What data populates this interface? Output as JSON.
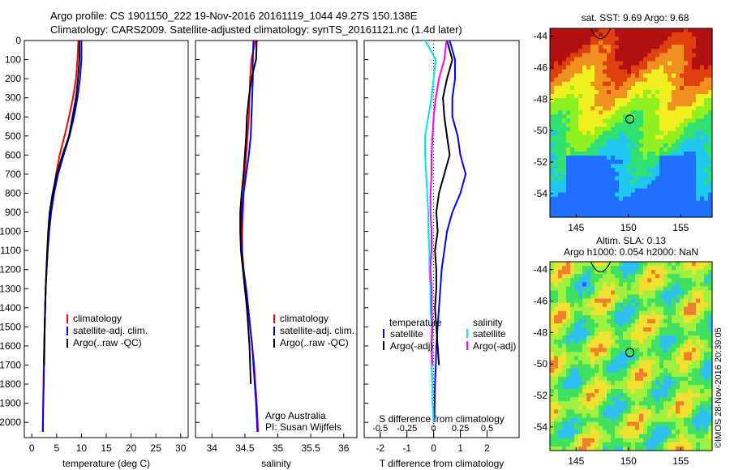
{
  "header": {
    "line1": "Argo profile: CS 1901150_222 19-Nov-2016 20161119_1044 49.27S 150.138E",
    "line2": "Climatology: CARS2009. Satellite-adjusted climatology: synTS_20161121.nc (1.4d later)"
  },
  "colors": {
    "climatology": "#ff0000",
    "satellite": "#0000ff",
    "argo": "#000000",
    "sat_salinity": "#00ffff",
    "argo_salinity_diff": "#ff00ff"
  },
  "chart_data": [
    {
      "type": "line",
      "xlabel": "temperature (deg C)",
      "ylabel": "",
      "xlim": [
        -1.5,
        31.5
      ],
      "ylim": [
        2080,
        0
      ],
      "xticks": [
        "0",
        "5",
        "10",
        "15",
        "20",
        "25",
        "30"
      ],
      "yticks": [
        "0",
        "100",
        "200",
        "300",
        "400",
        "500",
        "600",
        "700",
        "800",
        "900",
        "1000",
        "1100",
        "1200",
        "1300",
        "1400",
        "1500",
        "1600",
        "1700",
        "1800",
        "1900",
        "2000"
      ],
      "legend": [
        "climatology",
        "satellite-adj. clim.",
        "Argo(..raw -QC)"
      ],
      "legend_position": "lower-right",
      "series": [
        {
          "name": "climatology",
          "color": "red",
          "x": [
            9.4,
            9.2,
            8.9,
            8.3,
            7.5,
            6.6,
            5.6,
            4.9,
            4.3,
            3.8,
            3.5,
            3.2,
            3.0,
            2.8,
            2.7,
            2.6,
            2.5,
            2.4,
            2.35,
            2.3,
            2.2
          ],
          "y": [
            0,
            100,
            200,
            300,
            400,
            500,
            600,
            700,
            800,
            900,
            1000,
            1100,
            1200,
            1300,
            1400,
            1500,
            1600,
            1700,
            1800,
            1900,
            2050
          ]
        },
        {
          "name": "satellite-adj. clim.",
          "color": "blue",
          "x": [
            10.0,
            10.0,
            9.7,
            9.2,
            8.5,
            7.6,
            6.4,
            5.3,
            4.5,
            3.9,
            3.5,
            3.2,
            3.0,
            2.8,
            2.7,
            2.6,
            2.5,
            2.45,
            2.4,
            2.3,
            2.25
          ],
          "y": [
            0,
            100,
            200,
            300,
            400,
            500,
            600,
            700,
            800,
            900,
            1000,
            1100,
            1200,
            1300,
            1400,
            1500,
            1600,
            1700,
            1800,
            1900,
            2050
          ]
        },
        {
          "name": "Argo(..raw -QC)",
          "color": "black",
          "x": [
            9.6,
            9.6,
            9.3,
            8.9,
            8.2,
            7.5,
            6.2,
            5.0,
            4.2,
            3.6,
            3.3,
            3.1,
            2.95,
            2.8,
            2.7,
            2.6,
            2.55,
            2.5
          ],
          "y": [
            0,
            100,
            200,
            300,
            400,
            500,
            600,
            700,
            800,
            900,
            1000,
            1100,
            1200,
            1300,
            1400,
            1500,
            1600,
            1700
          ]
        }
      ]
    },
    {
      "type": "line",
      "xlabel": "salinity",
      "xlim": [
        33.75,
        36.2
      ],
      "ylim": [
        2080,
        0
      ],
      "xticks": [
        "34",
        "34.5",
        "35",
        "35.5",
        "36"
      ],
      "legend": [
        "climatology",
        "satellite-adj. clim.",
        "Argo(..raw -QC)"
      ],
      "legend_position": "lower-right",
      "annotation": [
        "Argo Australia",
        "PI: Susan Wijffels"
      ],
      "series": [
        {
          "name": "climatology",
          "color": "red",
          "x": [
            34.66,
            34.6,
            34.58,
            34.57,
            34.56,
            34.54,
            34.52,
            34.5,
            34.48,
            34.47,
            34.46,
            34.46,
            34.48,
            34.52,
            34.55,
            34.58,
            34.61,
            34.64,
            34.66,
            34.68,
            34.7
          ],
          "y": [
            0,
            100,
            200,
            300,
            400,
            500,
            600,
            700,
            800,
            900,
            1000,
            1100,
            1200,
            1300,
            1400,
            1500,
            1600,
            1700,
            1800,
            1900,
            2050
          ]
        },
        {
          "name": "satellite-adj. clim.",
          "color": "blue",
          "x": [
            34.63,
            34.62,
            34.62,
            34.61,
            34.6,
            34.59,
            34.56,
            34.52,
            34.48,
            34.45,
            34.44,
            34.45,
            34.48,
            34.52,
            34.55,
            34.58,
            34.61,
            34.63,
            34.65,
            34.67,
            34.69
          ],
          "y": [
            0,
            100,
            200,
            300,
            400,
            500,
            600,
            700,
            800,
            900,
            1000,
            1100,
            1200,
            1300,
            1400,
            1500,
            1600,
            1700,
            1800,
            1900,
            2050
          ]
        },
        {
          "name": "Argo(..raw -QC)",
          "color": "black",
          "x": [
            34.68,
            34.67,
            34.6,
            34.56,
            34.53,
            34.52,
            34.5,
            34.48,
            34.45,
            34.43,
            34.43,
            34.44,
            34.47,
            34.5,
            34.53,
            34.55,
            34.57,
            34.58,
            34.59
          ],
          "y": [
            0,
            100,
            200,
            300,
            400,
            500,
            600,
            700,
            800,
            900,
            1000,
            1100,
            1200,
            1300,
            1400,
            1500,
            1600,
            1700,
            1800
          ]
        }
      ]
    },
    {
      "type": "line",
      "xlabel": "T difference from climatology",
      "xlabel_top": "S difference from climatology",
      "xlim": [
        -2.6,
        3.2
      ],
      "ylim": [
        2080,
        0
      ],
      "xticks": [
        "-2",
        "-1",
        "0",
        "1",
        "2"
      ],
      "xticks_top": [
        "-0.5",
        "-0.25",
        "0",
        "0.25",
        "0.5"
      ],
      "legend": [
        "temperature",
        "satellite",
        "Argo(-adj)",
        "salinity",
        "satellite",
        "Argo(-adj)"
      ],
      "legend_position": "lower-center",
      "series": [
        {
          "name": "satellite",
          "color": "blue",
          "x": [
            0.6,
            0.8,
            0.8,
            0.7,
            0.7,
            0.9,
            1.0,
            1.2,
            1.0,
            0.7,
            0.5,
            0.4,
            0.3,
            0.25,
            0.2,
            0.15,
            0.1,
            0.08,
            0.05,
            0.04,
            0.03
          ],
          "y": [
            0,
            100,
            200,
            300,
            400,
            500,
            600,
            700,
            800,
            900,
            1000,
            1100,
            1200,
            1300,
            1400,
            1500,
            1600,
            1700,
            1800,
            1900,
            2000
          ]
        },
        {
          "name": "Argo(-adj)",
          "color": "black",
          "x": [
            0.5,
            0.7,
            0.5,
            0.35,
            0.4,
            0.5,
            0.6,
            0.4,
            0.2,
            0.1,
            0.15,
            0.05,
            0.1,
            0.1,
            0.05,
            0.1,
            0.15,
            0.2
          ],
          "y": [
            0,
            100,
            200,
            300,
            400,
            500,
            600,
            700,
            800,
            900,
            1000,
            1100,
            1200,
            1300,
            1400,
            1500,
            1600,
            1700
          ]
        },
        {
          "name": "satellite",
          "color": "cyan",
          "x": [
            -0.08,
            0.02,
            0.0,
            -0.02,
            -0.05,
            -0.08,
            -0.08,
            -0.07,
            -0.06,
            -0.05,
            -0.05,
            -0.04,
            -0.04,
            -0.03,
            -0.03,
            -0.02,
            -0.02,
            -0.02,
            -0.01,
            -0.01,
            0.0
          ],
          "y": [
            0,
            100,
            200,
            300,
            400,
            500,
            600,
            700,
            800,
            900,
            1000,
            1100,
            1200,
            1300,
            1400,
            1500,
            1600,
            1700,
            1800,
            1900,
            2000
          ]
        },
        {
          "name": "Argo(-adj)",
          "color": "magenta",
          "x": [
            0.12,
            0.1,
            0.05,
            0.02,
            0.0,
            -0.01,
            -0.02,
            -0.02,
            -0.03,
            -0.03,
            -0.02,
            -0.02,
            -0.03,
            -0.02,
            -0.02,
            -0.01,
            -0.02,
            -0.01
          ],
          "y": [
            0,
            100,
            200,
            300,
            400,
            500,
            600,
            700,
            800,
            900,
            1000,
            1100,
            1200,
            1300,
            1400,
            1500,
            1600,
            1700
          ]
        }
      ]
    },
    {
      "type": "heatmap",
      "title": "sat. SST: 9.69 Argo: 9.68",
      "xticks": [
        "145",
        "150",
        "155"
      ],
      "yticks": [
        "-44",
        "-46",
        "-48",
        "-50",
        "-52",
        "-54"
      ],
      "xlim": [
        142.5,
        158
      ],
      "ylim": [
        -55.5,
        -43.5
      ],
      "marker": {
        "lon": 150.138,
        "lat": -49.27
      }
    },
    {
      "type": "heatmap",
      "title": "Altim. SLA: 0.13",
      "subtitle": "Argo h1000: 0.054 h2000: NaN",
      "xticks": [
        "145",
        "150",
        "155"
      ],
      "yticks": [
        "-44",
        "-46",
        "-48",
        "-50",
        "-52",
        "-54"
      ],
      "xlim": [
        142.5,
        158
      ],
      "ylim": [
        -55.5,
        -43.5
      ],
      "marker": {
        "lon": 150.138,
        "lat": -49.27
      }
    }
  ],
  "watermark": "©IMOS 28-Nov-2016 20:39:05"
}
